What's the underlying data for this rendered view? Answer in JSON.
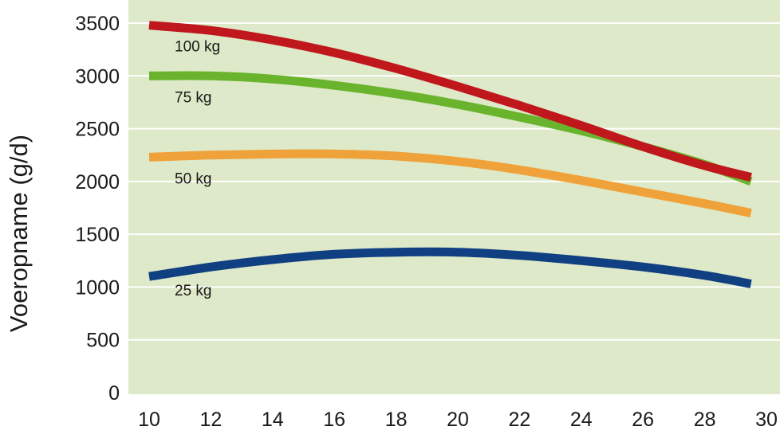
{
  "chart_data": {
    "type": "line",
    "title": "",
    "xlabel": "",
    "ylabel": "Voeropname (g/d)",
    "xlim": [
      10,
      30
    ],
    "ylim": [
      0,
      3500
    ],
    "xticks": [
      10,
      12,
      14,
      16,
      18,
      20,
      22,
      24,
      26,
      28,
      30
    ],
    "yticks": [
      0,
      500,
      1000,
      1500,
      2000,
      2500,
      3000,
      3500
    ],
    "grid": true,
    "plot_background": "#dde9c8",
    "x": [
      10,
      12,
      14,
      16,
      18,
      20,
      22,
      24,
      26,
      28,
      29.5
    ],
    "series": [
      {
        "name": "100 kg",
        "color": "#c0171d",
        "values": [
          3480,
          3430,
          3340,
          3220,
          3070,
          2900,
          2720,
          2530,
          2330,
          2150,
          2040
        ]
      },
      {
        "name": "75 kg",
        "color": "#6ab42d",
        "values": [
          3000,
          3000,
          2970,
          2910,
          2830,
          2730,
          2610,
          2480,
          2330,
          2160,
          2000
        ]
      },
      {
        "name": "50 kg",
        "color": "#f0a23a",
        "values": [
          2230,
          2250,
          2260,
          2260,
          2240,
          2190,
          2110,
          2010,
          1900,
          1790,
          1700
        ]
      },
      {
        "name": "25 kg",
        "color": "#103f82",
        "values": [
          1100,
          1190,
          1260,
          1310,
          1330,
          1330,
          1300,
          1250,
          1190,
          1110,
          1030
        ]
      }
    ]
  }
}
